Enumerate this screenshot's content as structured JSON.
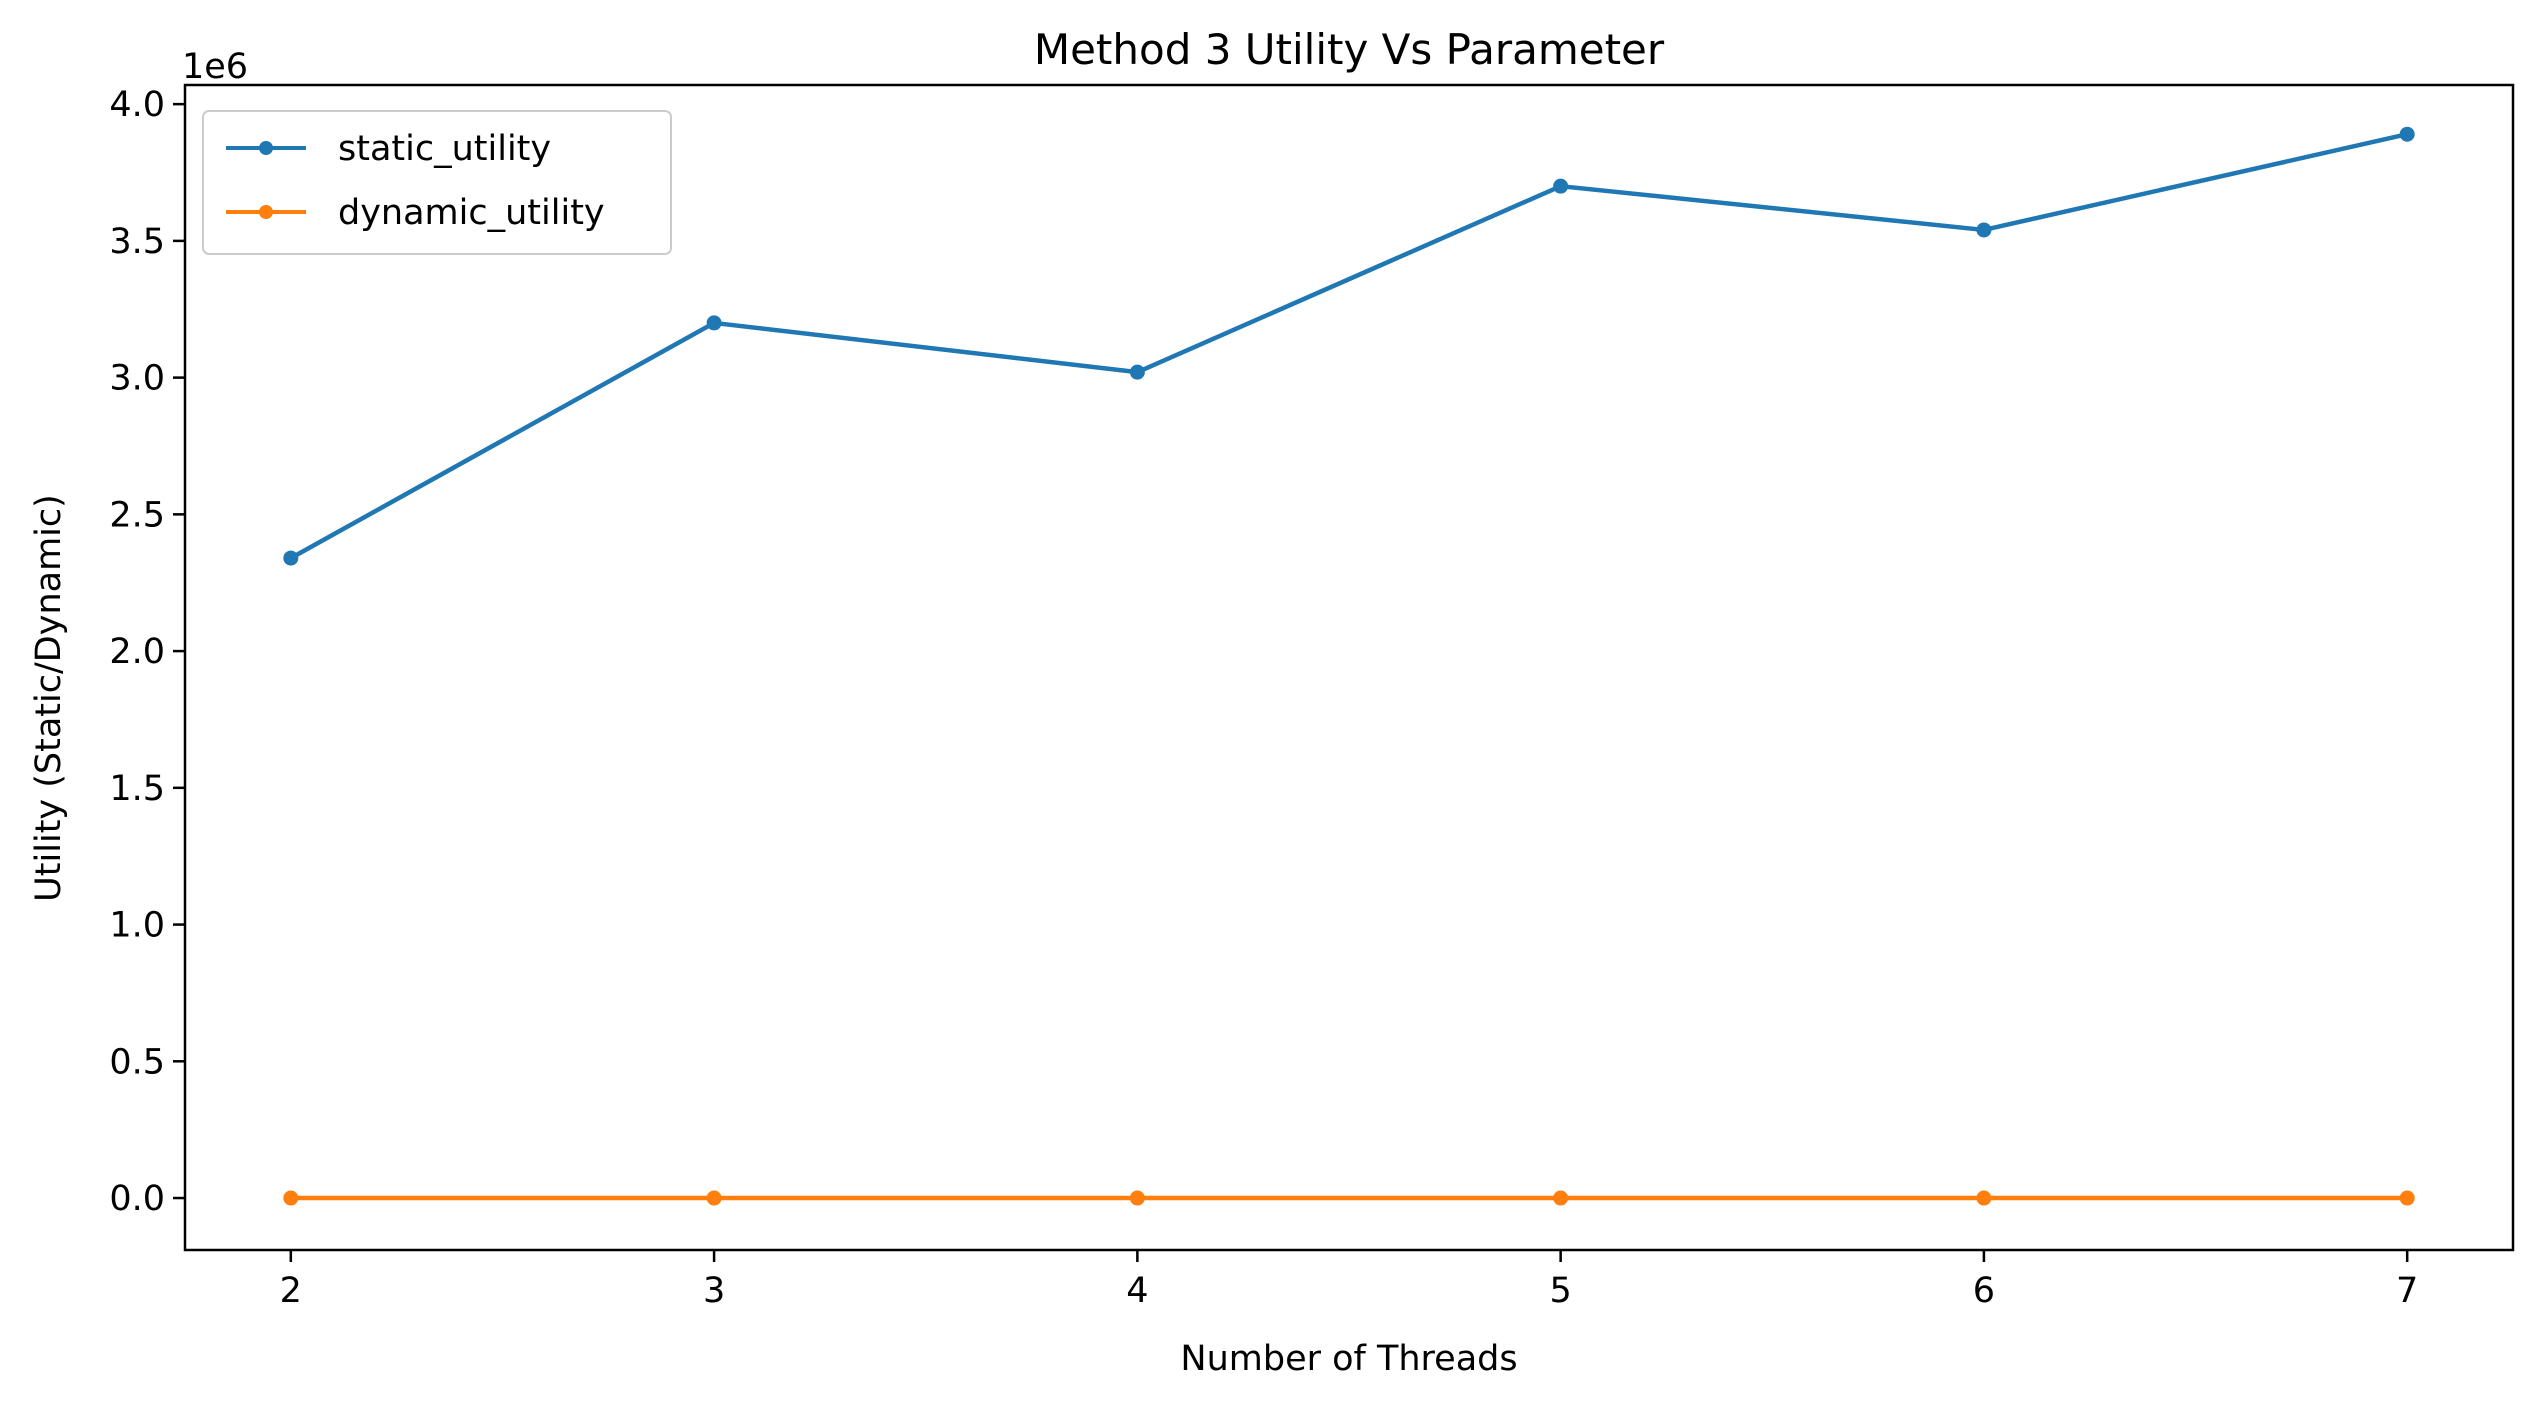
{
  "chart_data": {
    "type": "line",
    "title": "Method 3 Utility Vs Parameter",
    "xlabel": "Number of Threads",
    "ylabel": "Utility (Static/Dynamic)",
    "y_offset_label": "1e6",
    "x": [
      2,
      3,
      4,
      5,
      6,
      7
    ],
    "xlim": [
      1.75,
      7.25
    ],
    "ylim": [
      -190000,
      4070000
    ],
    "x_ticks": [
      2,
      3,
      4,
      5,
      6,
      7
    ],
    "x_tick_labels": [
      "2",
      "3",
      "4",
      "5",
      "6",
      "7"
    ],
    "y_ticks": [
      0,
      500000,
      1000000,
      1500000,
      2000000,
      2500000,
      3000000,
      3500000,
      4000000
    ],
    "y_tick_labels": [
      "0.0",
      "0.5",
      "1.0",
      "1.5",
      "2.0",
      "2.5",
      "3.0",
      "3.5",
      "4.0"
    ],
    "grid": false,
    "legend_position": "upper-left",
    "series": [
      {
        "name": "static_utility",
        "color": "#1f77b4",
        "marker": "circle",
        "values": [
          2340000,
          3200000,
          3020000,
          3700000,
          3540000,
          3890000
        ]
      },
      {
        "name": "dynamic_utility",
        "color": "#ff7f0e",
        "marker": "circle",
        "values": [
          0,
          0,
          0,
          0,
          0,
          0
        ]
      }
    ]
  }
}
